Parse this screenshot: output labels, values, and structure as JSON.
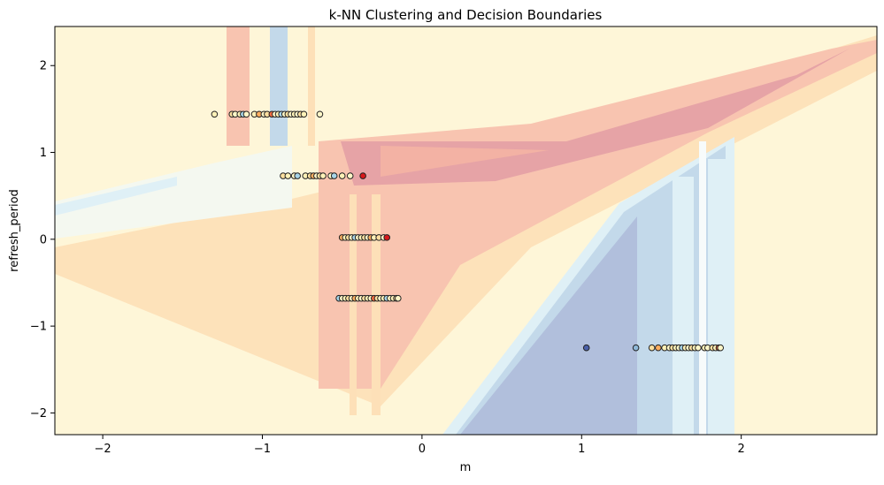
{
  "chart_data": {
    "type": "scatter",
    "title": "k-NN Clustering and Decision Boundaries",
    "xlabel": "m",
    "ylabel": "refresh_period",
    "xlim": [
      -2.3,
      2.85
    ],
    "ylim": [
      -2.25,
      2.45
    ],
    "xticks": [
      -2,
      -1,
      0,
      1,
      2
    ],
    "yticks": [
      -2,
      -1,
      0,
      1,
      2
    ],
    "xtick_labels": [
      "−2",
      "−1",
      "0",
      "1",
      "2"
    ],
    "ytick_labels": [
      "−2",
      "−1",
      "0",
      "1",
      "2"
    ],
    "grid": false,
    "legend": "none",
    "colors": {
      "background_region": "#fef6d8",
      "light_orange_region": "#fde0b8",
      "salmon_region": "#f8c4b0",
      "red_region": "#e6a3a6",
      "light_blue_region": "#dff0f6",
      "mid_blue_region": "#c3d9ea",
      "dark_blue_region": "#b1bfdc",
      "pale_green_region": "#f4f8f0",
      "point_edge": "#222222"
    },
    "series": [
      {
        "values": [
          {
            "x": -1.3,
            "y": 1.44,
            "c": "#fff2b8"
          },
          {
            "x": -1.19,
            "y": 1.44,
            "c": "#fde0a0"
          },
          {
            "x": -1.17,
            "y": 1.44,
            "c": "#fff7c8"
          },
          {
            "x": -1.14,
            "y": 1.44,
            "c": "#fff2b8"
          },
          {
            "x": -1.12,
            "y": 1.44,
            "c": "#a8d5e8"
          },
          {
            "x": -1.1,
            "y": 1.44,
            "c": "#fff7c8"
          },
          {
            "x": -1.05,
            "y": 1.44,
            "c": "#fff2b8"
          },
          {
            "x": -1.02,
            "y": 1.44,
            "c": "#fdae61"
          },
          {
            "x": -0.99,
            "y": 1.44,
            "c": "#fff7c8"
          },
          {
            "x": -0.97,
            "y": 1.44,
            "c": "#fde0a0"
          },
          {
            "x": -0.94,
            "y": 1.44,
            "c": "#f46d43"
          },
          {
            "x": -0.92,
            "y": 1.44,
            "c": "#fff7c8"
          },
          {
            "x": -0.9,
            "y": 1.44,
            "c": "#fff2b8"
          },
          {
            "x": -0.88,
            "y": 1.44,
            "c": "#a8d5e8"
          },
          {
            "x": -0.86,
            "y": 1.44,
            "c": "#fff7c8"
          },
          {
            "x": -0.84,
            "y": 1.44,
            "c": "#fde0a0"
          },
          {
            "x": -0.82,
            "y": 1.44,
            "c": "#fff7c8"
          },
          {
            "x": -0.8,
            "y": 1.44,
            "c": "#fff2b8"
          },
          {
            "x": -0.78,
            "y": 1.44,
            "c": "#fff7c8"
          },
          {
            "x": -0.76,
            "y": 1.44,
            "c": "#fde0a0"
          },
          {
            "x": -0.74,
            "y": 1.44,
            "c": "#fff2b8"
          },
          {
            "x": -0.64,
            "y": 1.44,
            "c": "#fff7c8"
          },
          {
            "x": -0.87,
            "y": 0.73,
            "c": "#fde0a0"
          },
          {
            "x": -0.84,
            "y": 0.73,
            "c": "#fff2b8"
          },
          {
            "x": -0.8,
            "y": 0.73,
            "c": "#fff7c8"
          },
          {
            "x": -0.78,
            "y": 0.73,
            "c": "#a8d5e8"
          },
          {
            "x": -0.73,
            "y": 0.73,
            "c": "#fff2b8"
          },
          {
            "x": -0.7,
            "y": 0.73,
            "c": "#fde0a0"
          },
          {
            "x": -0.68,
            "y": 0.73,
            "c": "#fdae61"
          },
          {
            "x": -0.66,
            "y": 0.73,
            "c": "#fff7c8"
          },
          {
            "x": -0.64,
            "y": 0.73,
            "c": "#fde0a0"
          },
          {
            "x": -0.62,
            "y": 0.73,
            "c": "#fff2b8"
          },
          {
            "x": -0.57,
            "y": 0.73,
            "c": "#fff7c8"
          },
          {
            "x": -0.55,
            "y": 0.73,
            "c": "#a8d5e8"
          },
          {
            "x": -0.5,
            "y": 0.73,
            "c": "#fff2b8"
          },
          {
            "x": -0.45,
            "y": 0.73,
            "c": "#fff7c8"
          },
          {
            "x": -0.37,
            "y": 0.73,
            "c": "#d7191c"
          },
          {
            "x": -0.5,
            "y": 0.02,
            "c": "#fdae61"
          },
          {
            "x": -0.48,
            "y": 0.02,
            "c": "#fff2b8"
          },
          {
            "x": -0.46,
            "y": 0.02,
            "c": "#fde0a0"
          },
          {
            "x": -0.44,
            "y": 0.02,
            "c": "#fff7c8"
          },
          {
            "x": -0.42,
            "y": 0.02,
            "c": "#a8d5e8"
          },
          {
            "x": -0.4,
            "y": 0.02,
            "c": "#fff7c8"
          },
          {
            "x": -0.38,
            "y": 0.02,
            "c": "#fff2b8"
          },
          {
            "x": -0.36,
            "y": 0.02,
            "c": "#fde0a0"
          },
          {
            "x": -0.34,
            "y": 0.02,
            "c": "#fff7c8"
          },
          {
            "x": -0.32,
            "y": 0.02,
            "c": "#fdae61"
          },
          {
            "x": -0.3,
            "y": 0.02,
            "c": "#fff2b8"
          },
          {
            "x": -0.27,
            "y": 0.02,
            "c": "#fde0a0"
          },
          {
            "x": -0.24,
            "y": 0.02,
            "c": "#fff7c8"
          },
          {
            "x": -0.22,
            "y": 0.02,
            "c": "#d7191c"
          },
          {
            "x": -0.52,
            "y": -0.68,
            "c": "#a8d5e8"
          },
          {
            "x": -0.5,
            "y": -0.68,
            "c": "#fff7c8"
          },
          {
            "x": -0.48,
            "y": -0.68,
            "c": "#fff2b8"
          },
          {
            "x": -0.46,
            "y": -0.68,
            "c": "#fde0a0"
          },
          {
            "x": -0.44,
            "y": -0.68,
            "c": "#fff7c8"
          },
          {
            "x": -0.42,
            "y": -0.68,
            "c": "#fdae61"
          },
          {
            "x": -0.4,
            "y": -0.68,
            "c": "#fff2b8"
          },
          {
            "x": -0.38,
            "y": -0.68,
            "c": "#fff7c8"
          },
          {
            "x": -0.36,
            "y": -0.68,
            "c": "#fde0a0"
          },
          {
            "x": -0.34,
            "y": -0.68,
            "c": "#fff2b8"
          },
          {
            "x": -0.32,
            "y": -0.68,
            "c": "#fff7c8"
          },
          {
            "x": -0.3,
            "y": -0.68,
            "c": "#f46d43"
          },
          {
            "x": -0.28,
            "y": -0.68,
            "c": "#fde0a0"
          },
          {
            "x": -0.26,
            "y": -0.68,
            "c": "#fff7c8"
          },
          {
            "x": -0.24,
            "y": -0.68,
            "c": "#fff2b8"
          },
          {
            "x": -0.22,
            "y": -0.68,
            "c": "#a8d5e8"
          },
          {
            "x": -0.2,
            "y": -0.68,
            "c": "#fff7c8"
          },
          {
            "x": -0.18,
            "y": -0.68,
            "c": "#fff2b8"
          },
          {
            "x": -0.16,
            "y": -0.68,
            "c": "#fde0a0"
          },
          {
            "x": -0.15,
            "y": -0.68,
            "c": "#fff7c8"
          },
          {
            "x": 1.03,
            "y": -1.25,
            "c": "#4a5fa8"
          },
          {
            "x": 1.34,
            "y": -1.25,
            "c": "#8fb8d8"
          },
          {
            "x": 1.44,
            "y": -1.25,
            "c": "#fde0a0"
          },
          {
            "x": 1.48,
            "y": -1.25,
            "c": "#fdae61"
          },
          {
            "x": 1.52,
            "y": -1.25,
            "c": "#fff2b8"
          },
          {
            "x": 1.55,
            "y": -1.25,
            "c": "#fff7c8"
          },
          {
            "x": 1.57,
            "y": -1.25,
            "c": "#fde0a0"
          },
          {
            "x": 1.59,
            "y": -1.25,
            "c": "#fff2b8"
          },
          {
            "x": 1.61,
            "y": -1.25,
            "c": "#fff7c8"
          },
          {
            "x": 1.63,
            "y": -1.25,
            "c": "#a8d5e8"
          },
          {
            "x": 1.65,
            "y": -1.25,
            "c": "#fff2b8"
          },
          {
            "x": 1.67,
            "y": -1.25,
            "c": "#fff7c8"
          },
          {
            "x": 1.69,
            "y": -1.25,
            "c": "#fde0a0"
          },
          {
            "x": 1.71,
            "y": -1.25,
            "c": "#fff2b8"
          },
          {
            "x": 1.73,
            "y": -1.25,
            "c": "#fff7c8"
          },
          {
            "x": 1.77,
            "y": -1.25,
            "c": "#fff2b8"
          },
          {
            "x": 1.79,
            "y": -1.25,
            "c": "#fff7c8"
          },
          {
            "x": 1.82,
            "y": -1.25,
            "c": "#fde0a0"
          },
          {
            "x": 1.84,
            "y": -1.25,
            "c": "#fff2b8"
          },
          {
            "x": 1.86,
            "y": -1.25,
            "c": "#f46d43"
          },
          {
            "x": 1.87,
            "y": -1.25,
            "c": "#fff7c8"
          }
        ]
      }
    ]
  }
}
